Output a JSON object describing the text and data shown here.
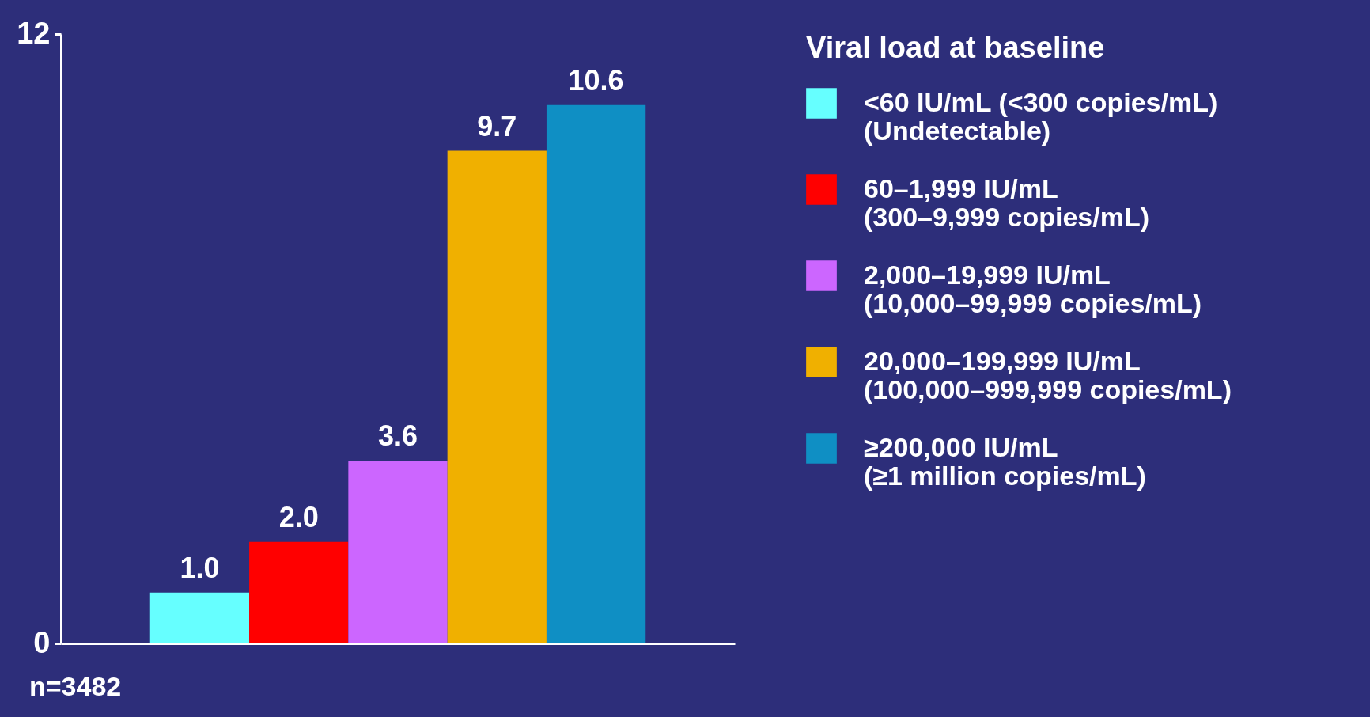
{
  "chart_data": {
    "type": "bar",
    "categories": [
      null
    ],
    "ylim": [
      0,
      12
    ],
    "yticks": [
      0,
      12
    ],
    "grid": false,
    "legend": "right",
    "legend_title": "Viral load at baseline",
    "annotations": [
      "n=3482"
    ],
    "series": [
      {
        "name": "<60 IU/mL (<300 copies/mL)\n(Undetectable)",
        "color": "#66ffff",
        "values": [
          1.0
        ],
        "value_labels": [
          "1.0"
        ]
      },
      {
        "name": "60–1,999 IU/mL\n(300–9,999 copies/mL)",
        "color": "#ff0000",
        "values": [
          2.0
        ],
        "value_labels": [
          "2.0"
        ]
      },
      {
        "name": "2,000–19,999 IU/mL\n(10,000–99,999 copies/mL)",
        "color": "#cc66ff",
        "values": [
          3.6
        ],
        "value_labels": [
          "3.6"
        ]
      },
      {
        "name": "20,000–199,999 IU/mL\n(100,000–999,999 copies/mL)",
        "color": "#f0b000",
        "values": [
          9.7
        ],
        "value_labels": [
          "9.7"
        ]
      },
      {
        "name": "≥200,000 IU/mL\n(≥1 million copies/mL)",
        "color": "#0f8fc4",
        "values": [
          10.6
        ],
        "value_labels": [
          "10.6"
        ]
      }
    ]
  }
}
